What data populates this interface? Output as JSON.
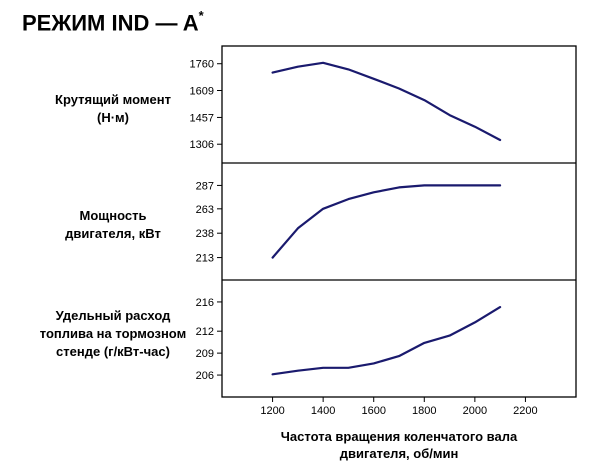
{
  "title": "РЕЖИМ IND — A",
  "title_superscript": "*",
  "colors": {
    "line": "#1a1a6e",
    "frame": "#000000"
  },
  "x_axis": {
    "label_line1": "Частота вращения коленчатого вала",
    "label_line2": "двигателя, об/мин",
    "ticks": [
      1200,
      1400,
      1600,
      1800,
      2000,
      2200
    ],
    "range": [
      1000,
      2400
    ]
  },
  "panels": [
    {
      "label_line1": "Крутящий момент",
      "label_line2": "(Н·м)"
    },
    {
      "label_line1": "Мощность",
      "label_line2": "двигателя, кВт"
    },
    {
      "label_line1": "Удельный расход",
      "label_line2": "топлива на тормозном",
      "label_line3": "стенде (г/кВт-час)"
    }
  ],
  "chart_data": [
    {
      "type": "line",
      "ylabel": "Крутящий момент (Н·м)",
      "yticks": [
        1306,
        1457,
        1609,
        1760
      ],
      "x": [
        1200,
        1300,
        1400,
        1500,
        1600,
        1700,
        1800,
        1900,
        2000,
        2100
      ],
      "values": [
        1710,
        1743,
        1765,
        1728,
        1675,
        1620,
        1555,
        1470,
        1405,
        1330
      ],
      "ylim": [
        1200,
        1860
      ]
    },
    {
      "type": "line",
      "ylabel": "Мощность двигателя, кВт",
      "yticks": [
        213,
        238,
        263,
        287
      ],
      "x": [
        1200,
        1300,
        1400,
        1500,
        1600,
        1700,
        1800,
        1900,
        2000,
        2100
      ],
      "values": [
        213,
        243,
        263,
        273,
        280,
        285,
        287,
        287,
        287,
        287
      ],
      "ylim": [
        190,
        310
      ]
    },
    {
      "type": "line",
      "ylabel": "Удельный расход топлива на тормозном стенде (г/кВт-час)",
      "yticks": [
        206,
        209,
        212,
        216
      ],
      "x": [
        1200,
        1300,
        1400,
        1500,
        1600,
        1700,
        1800,
        1900,
        2000,
        2100
      ],
      "values": [
        206.1,
        206.6,
        207.0,
        207.0,
        207.6,
        208.6,
        210.4,
        211.4,
        213.2,
        215.3
      ],
      "ylim": [
        203,
        219
      ]
    }
  ]
}
